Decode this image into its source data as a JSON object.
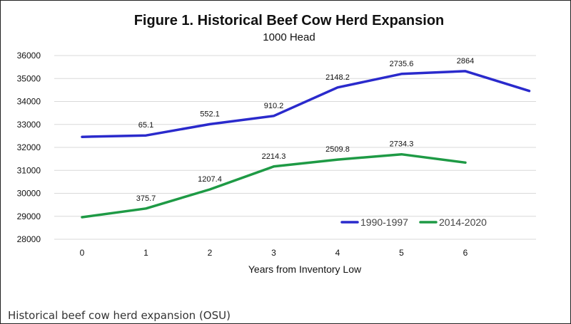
{
  "caption": "Historical beef cow herd expansion (OSU)",
  "colors": {
    "series_1990": "#2a2acc",
    "series_2014": "#1e9a45",
    "grid": "#d9d9d9"
  },
  "chart_data": {
    "type": "line",
    "title": "Figure 1. Historical Beef Cow Herd Expansion",
    "subtitle": "1000 Head",
    "xlabel": "Years from Inventory Low",
    "ylabel": "",
    "ylim": [
      28000,
      36000
    ],
    "y_ticks": [
      "28000",
      "29000",
      "30000",
      "31000",
      "32000",
      "33000",
      "34000",
      "35000",
      "36000"
    ],
    "x_ticks": [
      "0",
      "1",
      "2",
      "3",
      "4",
      "5",
      "6"
    ],
    "grid": true,
    "legend_position": "bottom-right",
    "series": [
      {
        "name": "1990-1997",
        "x": [
          0,
          1,
          2,
          3,
          4,
          5,
          6,
          7
        ],
        "values": [
          32460,
          32520,
          33010,
          33370,
          34610,
          35200,
          35320,
          34460
        ],
        "point_labels": [
          "",
          "65.1",
          "552.1",
          "910.2",
          "2148.2",
          "2735.6",
          "2864",
          ""
        ]
      },
      {
        "name": "2014-2020",
        "x": [
          0,
          1,
          2,
          3,
          4,
          5,
          6
        ],
        "values": [
          28960,
          29340,
          30170,
          31170,
          31470,
          31700,
          31340
        ],
        "point_labels": [
          "",
          "375.7",
          "1207.4",
          "2214.3",
          "2509.8",
          "2734.3",
          ""
        ]
      }
    ]
  }
}
